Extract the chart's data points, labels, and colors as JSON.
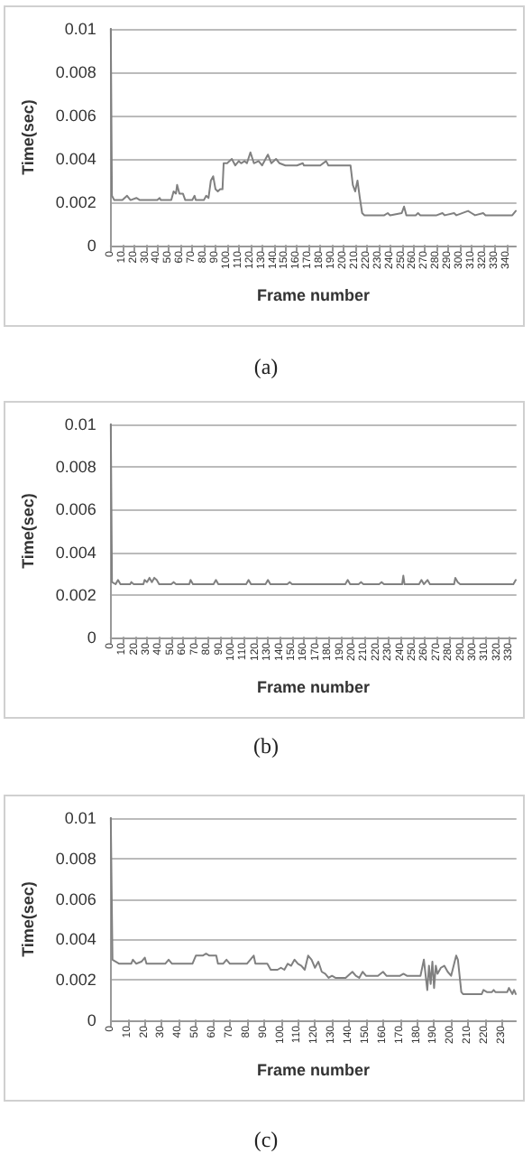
{
  "chart_data": [
    {
      "type": "line",
      "xlabel": "Frame number",
      "ylabel": "Time(sec)",
      "annotations": [
        "(a)"
      ],
      "grid": "y",
      "marker": "none",
      "line_style": "solid",
      "xlim": [
        0,
        348
      ],
      "xticks": [
        0,
        10,
        20,
        30,
        40,
        50,
        60,
        70,
        80,
        90,
        100,
        110,
        120,
        130,
        140,
        150,
        160,
        170,
        180,
        190,
        200,
        210,
        220,
        230,
        240,
        250,
        260,
        270,
        280,
        290,
        300,
        310,
        320,
        330,
        340
      ],
      "ylim": [
        0,
        0.01
      ],
      "yticks": [
        0,
        0.002,
        0.004,
        0.006,
        0.008,
        0.01
      ],
      "series": [
        {
          "color": "#808080",
          "x": [
            0,
            1,
            3,
            10,
            14,
            17,
            22,
            25,
            40,
            42,
            43,
            52,
            54,
            56,
            57,
            59,
            62,
            64,
            70,
            72,
            73,
            80,
            82,
            84,
            86,
            88,
            90,
            92,
            94,
            96,
            97,
            100,
            104,
            107,
            110,
            112,
            115,
            117,
            120,
            123,
            127,
            130,
            135,
            138,
            142,
            145,
            150,
            160,
            165,
            166,
            180,
            185,
            187,
            206,
            208,
            210,
            212,
            214,
            216,
            218,
            235,
            238,
            240,
            250,
            252,
            254,
            262,
            264,
            266,
            280,
            285,
            287,
            295,
            297,
            307,
            310,
            313,
            320,
            322,
            345,
            348
          ],
          "values": [
            0.01,
            0.0023,
            0.0021,
            0.0021,
            0.0023,
            0.0021,
            0.0022,
            0.0021,
            0.0021,
            0.0022,
            0.0021,
            0.0021,
            0.0025,
            0.0024,
            0.0028,
            0.0024,
            0.0024,
            0.0021,
            0.0021,
            0.0023,
            0.0021,
            0.0021,
            0.0023,
            0.0022,
            0.003,
            0.0032,
            0.0026,
            0.0025,
            0.0026,
            0.0026,
            0.0038,
            0.0038,
            0.004,
            0.0037,
            0.0039,
            0.0038,
            0.0039,
            0.0038,
            0.0043,
            0.0038,
            0.0039,
            0.0037,
            0.0042,
            0.0038,
            0.004,
            0.0038,
            0.0037,
            0.0037,
            0.0038,
            0.0037,
            0.0037,
            0.0039,
            0.0037,
            0.0037,
            0.0028,
            0.0025,
            0.003,
            0.0022,
            0.0015,
            0.0014,
            0.0014,
            0.0015,
            0.0014,
            0.0015,
            0.0018,
            0.0014,
            0.0014,
            0.0015,
            0.0014,
            0.0014,
            0.0015,
            0.0014,
            0.0015,
            0.0014,
            0.0016,
            0.0015,
            0.0014,
            0.0015,
            0.0014,
            0.0014,
            0.0016
          ]
        }
      ]
    },
    {
      "type": "line",
      "xlabel": "Frame number",
      "ylabel": "Time(sec)",
      "annotations": [
        "(b)"
      ],
      "grid": "y",
      "marker": "none",
      "line_style": "solid",
      "xlim": [
        0,
        335
      ],
      "xticks": [
        0,
        10,
        20,
        30,
        40,
        50,
        60,
        70,
        80,
        90,
        100,
        110,
        120,
        130,
        140,
        150,
        160,
        170,
        180,
        190,
        200,
        210,
        220,
        230,
        240,
        250,
        260,
        270,
        280,
        290,
        300,
        310,
        320,
        330
      ],
      "ylim": [
        0,
        0.01
      ],
      "yticks": [
        0,
        0.002,
        0.004,
        0.006,
        0.008,
        0.01
      ],
      "series": [
        {
          "color": "#808080",
          "x": [
            0,
            1,
            4,
            6,
            8,
            16,
            17,
            19,
            27,
            28,
            30,
            32,
            34,
            36,
            38,
            40,
            50,
            52,
            54,
            65,
            66,
            68,
            85,
            87,
            89,
            112,
            114,
            116,
            128,
            130,
            132,
            146,
            148,
            150,
            194,
            196,
            198,
            205,
            207,
            209,
            222,
            224,
            226,
            241,
            242,
            243,
            255,
            257,
            259,
            262,
            264,
            284,
            285,
            287,
            289,
            333,
            335
          ],
          "values": [
            0.01,
            0.0026,
            0.0025,
            0.0027,
            0.0025,
            0.0025,
            0.0026,
            0.0025,
            0.0025,
            0.0027,
            0.0026,
            0.0028,
            0.0026,
            0.0028,
            0.0027,
            0.0025,
            0.0025,
            0.0026,
            0.0025,
            0.0025,
            0.0027,
            0.0025,
            0.0025,
            0.0027,
            0.0025,
            0.0025,
            0.0027,
            0.0025,
            0.0025,
            0.0027,
            0.0025,
            0.0025,
            0.0026,
            0.0025,
            0.0025,
            0.0027,
            0.0025,
            0.0025,
            0.0026,
            0.0025,
            0.0025,
            0.0026,
            0.0025,
            0.0025,
            0.0029,
            0.0025,
            0.0025,
            0.0027,
            0.0025,
            0.0027,
            0.0025,
            0.0025,
            0.0028,
            0.0026,
            0.0025,
            0.0025,
            0.0027
          ]
        }
      ]
    },
    {
      "type": "line",
      "xlabel": "Frame number",
      "ylabel": "Time(sec)",
      "annotations": [
        "(c)"
      ],
      "grid": "y",
      "marker": "none",
      "line_style": "solid",
      "xlim": [
        0,
        238
      ],
      "xticks": [
        0,
        10,
        20,
        30,
        40,
        50,
        60,
        70,
        80,
        90,
        100,
        110,
        120,
        130,
        140,
        150,
        160,
        170,
        180,
        190,
        200,
        210,
        220,
        230
      ],
      "ylim": [
        0,
        0.01
      ],
      "yticks": [
        0,
        0.002,
        0.004,
        0.006,
        0.008,
        0.01
      ],
      "series": [
        {
          "color": "#808080",
          "x": [
            0,
            1,
            3,
            5,
            12,
            13,
            15,
            18,
            20,
            21,
            32,
            34,
            36,
            48,
            50,
            54,
            56,
            58,
            62,
            63,
            66,
            68,
            70,
            80,
            82,
            84,
            85,
            92,
            94,
            98,
            100,
            102,
            104,
            106,
            108,
            110,
            112,
            114,
            116,
            118,
            120,
            122,
            124,
            126,
            128,
            130,
            132,
            138,
            142,
            144,
            146,
            148,
            150,
            157,
            160,
            162,
            170,
            172,
            174,
            182,
            184,
            186,
            187,
            188,
            189,
            190,
            191,
            192,
            194,
            196,
            198,
            200,
            203,
            204,
            206,
            207,
            218,
            219,
            221,
            224,
            225,
            226,
            233,
            234,
            236,
            237,
            238
          ],
          "values": [
            0.01,
            0.003,
            0.0029,
            0.0028,
            0.0028,
            0.003,
            0.0028,
            0.0029,
            0.0031,
            0.0028,
            0.0028,
            0.003,
            0.0028,
            0.0028,
            0.0032,
            0.0032,
            0.0033,
            0.0032,
            0.0032,
            0.0028,
            0.0028,
            0.003,
            0.0028,
            0.0028,
            0.003,
            0.0032,
            0.0028,
            0.0028,
            0.0025,
            0.0025,
            0.0026,
            0.0025,
            0.0028,
            0.0027,
            0.003,
            0.0028,
            0.0027,
            0.0025,
            0.0032,
            0.003,
            0.0026,
            0.0029,
            0.0024,
            0.0023,
            0.0021,
            0.0022,
            0.0021,
            0.0021,
            0.0024,
            0.0022,
            0.0021,
            0.0024,
            0.0022,
            0.0022,
            0.0024,
            0.0022,
            0.0022,
            0.0023,
            0.0022,
            0.0022,
            0.003,
            0.0015,
            0.0027,
            0.0018,
            0.0029,
            0.0016,
            0.0027,
            0.0023,
            0.0026,
            0.0027,
            0.0024,
            0.0022,
            0.0032,
            0.003,
            0.0014,
            0.0013,
            0.0013,
            0.0015,
            0.0014,
            0.0014,
            0.0015,
            0.0014,
            0.0014,
            0.0016,
            0.0013,
            0.0015,
            0.0013
          ]
        }
      ]
    }
  ]
}
